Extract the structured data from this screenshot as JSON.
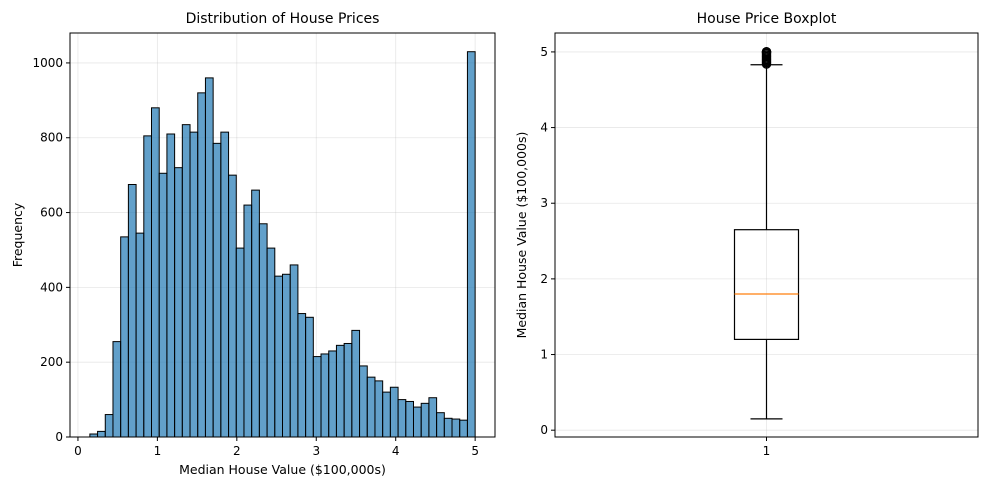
{
  "chart_data": [
    {
      "type": "bar",
      "subtype": "histogram",
      "title": "Distribution of House Prices",
      "xlabel": "Median House Value ($100,000s)",
      "ylabel": "Frequency",
      "xlim": [
        -0.1,
        5.25
      ],
      "ylim": [
        0,
        1080
      ],
      "xticks": [
        0,
        1,
        2,
        3,
        4,
        5
      ],
      "yticks": [
        0,
        200,
        400,
        600,
        800,
        1000
      ],
      "grid": true,
      "bar_color": "#1f77b4",
      "bar_edge_color": "#000000",
      "bin_start": 0.15,
      "bin_width": 0.097,
      "values": [
        8,
        15,
        60,
        255,
        535,
        675,
        545,
        805,
        880,
        705,
        810,
        720,
        835,
        815,
        920,
        960,
        785,
        815,
        700,
        505,
        620,
        660,
        570,
        505,
        430,
        435,
        460,
        330,
        320,
        215,
        222,
        230,
        245,
        250,
        285,
        190,
        160,
        150,
        120,
        133,
        100,
        95,
        80,
        90,
        105,
        65,
        50,
        48,
        45,
        1030
      ]
    },
    {
      "type": "boxplot",
      "title": "House Price Boxplot",
      "xlabel": "",
      "ylabel": "Median House Value ($100,000s)",
      "ylim": [
        -0.09,
        5.25
      ],
      "yticks": [
        0,
        1,
        2,
        3,
        4,
        5
      ],
      "xticks": [
        "1"
      ],
      "grid": true,
      "median_color": "#ff7f0e",
      "box": {
        "whisker_low": 0.15,
        "q1": 1.2,
        "median": 1.8,
        "q3": 2.65,
        "whisker_high": 4.83
      },
      "outliers": [
        4.84,
        4.86,
        4.88,
        4.9,
        4.92,
        4.94,
        4.96,
        4.98,
        5.0,
        5.0,
        5.0
      ]
    }
  ]
}
